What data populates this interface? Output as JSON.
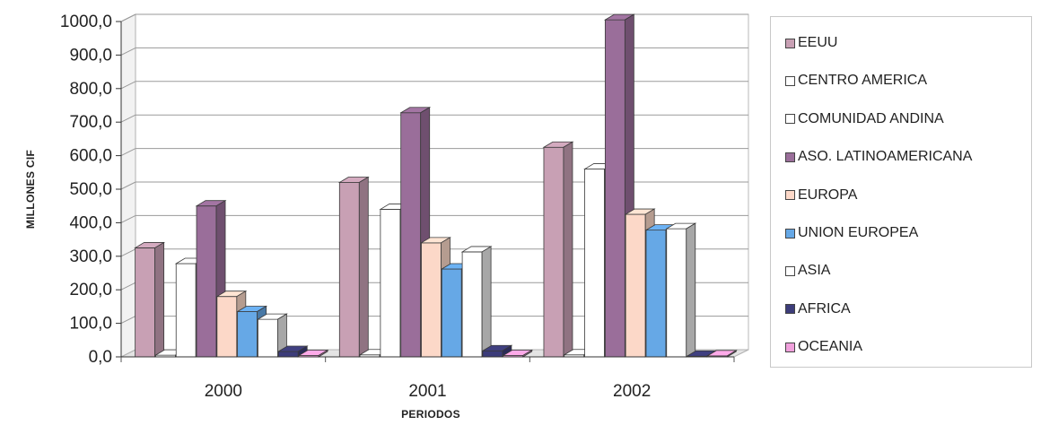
{
  "chart_data": {
    "type": "bar",
    "title": "",
    "xlabel": "PERIODOS",
    "ylabel": "MILLONES CIF",
    "ylim": [
      0,
      1000
    ],
    "yticks": [
      "0,0",
      "100,0",
      "200,0",
      "300,0",
      "400,0",
      "500,0",
      "600,0",
      "700,0",
      "800,0",
      "900,0",
      "1000,0"
    ],
    "categories": [
      "2000",
      "2001",
      "2002"
    ],
    "grid": true,
    "legend_position": "right",
    "series": [
      {
        "name": "EEUU",
        "color": "#c8a0b4",
        "values": [
          325,
          520,
          625
        ]
      },
      {
        "name": "CENTRO AMERICA",
        "color": "#ffffff",
        "values": [
          5,
          6,
          6
        ]
      },
      {
        "name": "COMUNIDAD ANDINA",
        "color": "#ffffff",
        "values": [
          278,
          440,
          560
        ]
      },
      {
        "name": "ASO. LATINOAMERICANA",
        "color": "#9a6e9a",
        "values": [
          450,
          728,
          1005
        ]
      },
      {
        "name": "EUROPA",
        "color": "#fcd8c8",
        "values": [
          180,
          340,
          425
        ]
      },
      {
        "name": "UNION EUROPEA",
        "color": "#66a8e6",
        "values": [
          135,
          262,
          378
        ]
      },
      {
        "name": "ASIA",
        "color": "#ffffff",
        "values": [
          112,
          313,
          382
        ]
      },
      {
        "name": "AFRICA",
        "color": "#3c3c7a",
        "values": [
          16,
          18,
          2
        ]
      },
      {
        "name": "OCEANIA",
        "color": "#f0a0dc",
        "values": [
          4,
          4,
          3
        ]
      }
    ]
  }
}
